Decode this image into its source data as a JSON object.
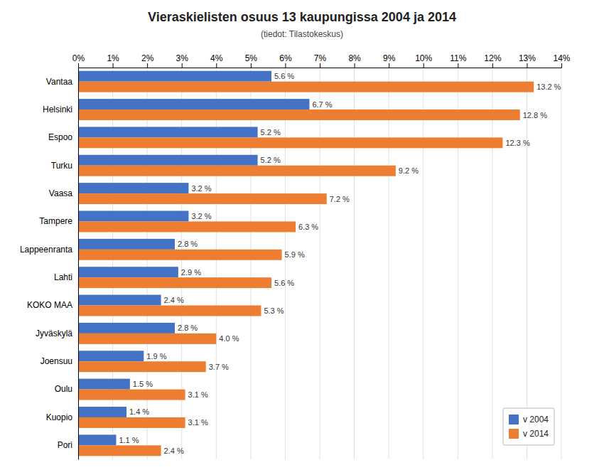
{
  "chart_data": {
    "type": "bar",
    "orientation": "horizontal",
    "title": "Vieraskielisten osuus 13 kaupungissa 2004 ja 2014",
    "subtitle": "(tiedot: Tilastokeskus)",
    "categories": [
      "Vantaa",
      "Helsinki",
      "Espoo",
      "Turku",
      "Vaasa",
      "Tampere",
      "Lappeenranta",
      "Lahti",
      "KOKO MAA",
      "Jyväskylä",
      "Joensuu",
      "Oulu",
      "Kuopio",
      "Pori"
    ],
    "series": [
      {
        "name": "v 2004",
        "color": "#4472C4",
        "values": [
          5.6,
          6.7,
          5.2,
          5.2,
          3.2,
          3.2,
          2.8,
          2.9,
          2.4,
          2.8,
          1.9,
          1.5,
          1.4,
          1.1
        ],
        "value_labels": [
          "5.6 %",
          "6.7 %",
          "5.2 %",
          "5.2 %",
          "3.2 %",
          "3.2 %",
          "2.8 %",
          "2.9 %",
          "2.4 %",
          "2.8 %",
          "1.9 %",
          "1.5 %",
          "1.4 %",
          "1.1 %"
        ]
      },
      {
        "name": "v 2014",
        "color": "#ED7D31",
        "values": [
          13.2,
          12.8,
          12.3,
          9.2,
          7.2,
          6.3,
          5.9,
          5.6,
          5.3,
          4.0,
          3.7,
          3.1,
          3.1,
          2.4
        ],
        "value_labels": [
          "13.2 %",
          "12.8 %",
          "12.3 %",
          "9.2 %",
          "7.2 %",
          "6.3 %",
          "5.9 %",
          "5.6 %",
          "5.3 %",
          "4.0 %",
          "3.7 %",
          "3.1 %",
          "3.1 %",
          "2.4 %"
        ]
      }
    ],
    "xlim": [
      0,
      14
    ],
    "xticks": [
      {
        "value": 0,
        "label": "0%"
      },
      {
        "value": 1,
        "label": "1%"
      },
      {
        "value": 2,
        "label": "2%"
      },
      {
        "value": 3,
        "label": "3%"
      },
      {
        "value": 4,
        "label": "4%"
      },
      {
        "value": 5,
        "label": "5%"
      },
      {
        "value": 6,
        "label": "6%"
      },
      {
        "value": 7,
        "label": "7%"
      },
      {
        "value": 8,
        "label": "8%"
      },
      {
        "value": 9,
        "label": "9%"
      },
      {
        "value": 10,
        "label": "10%"
      },
      {
        "value": 11,
        "label": "11%"
      },
      {
        "value": 12,
        "label": "12%"
      },
      {
        "value": 13,
        "label": "13%"
      },
      {
        "value": 14,
        "label": "14%"
      }
    ],
    "grid": true,
    "legend": "lower right",
    "data_labels": true
  }
}
